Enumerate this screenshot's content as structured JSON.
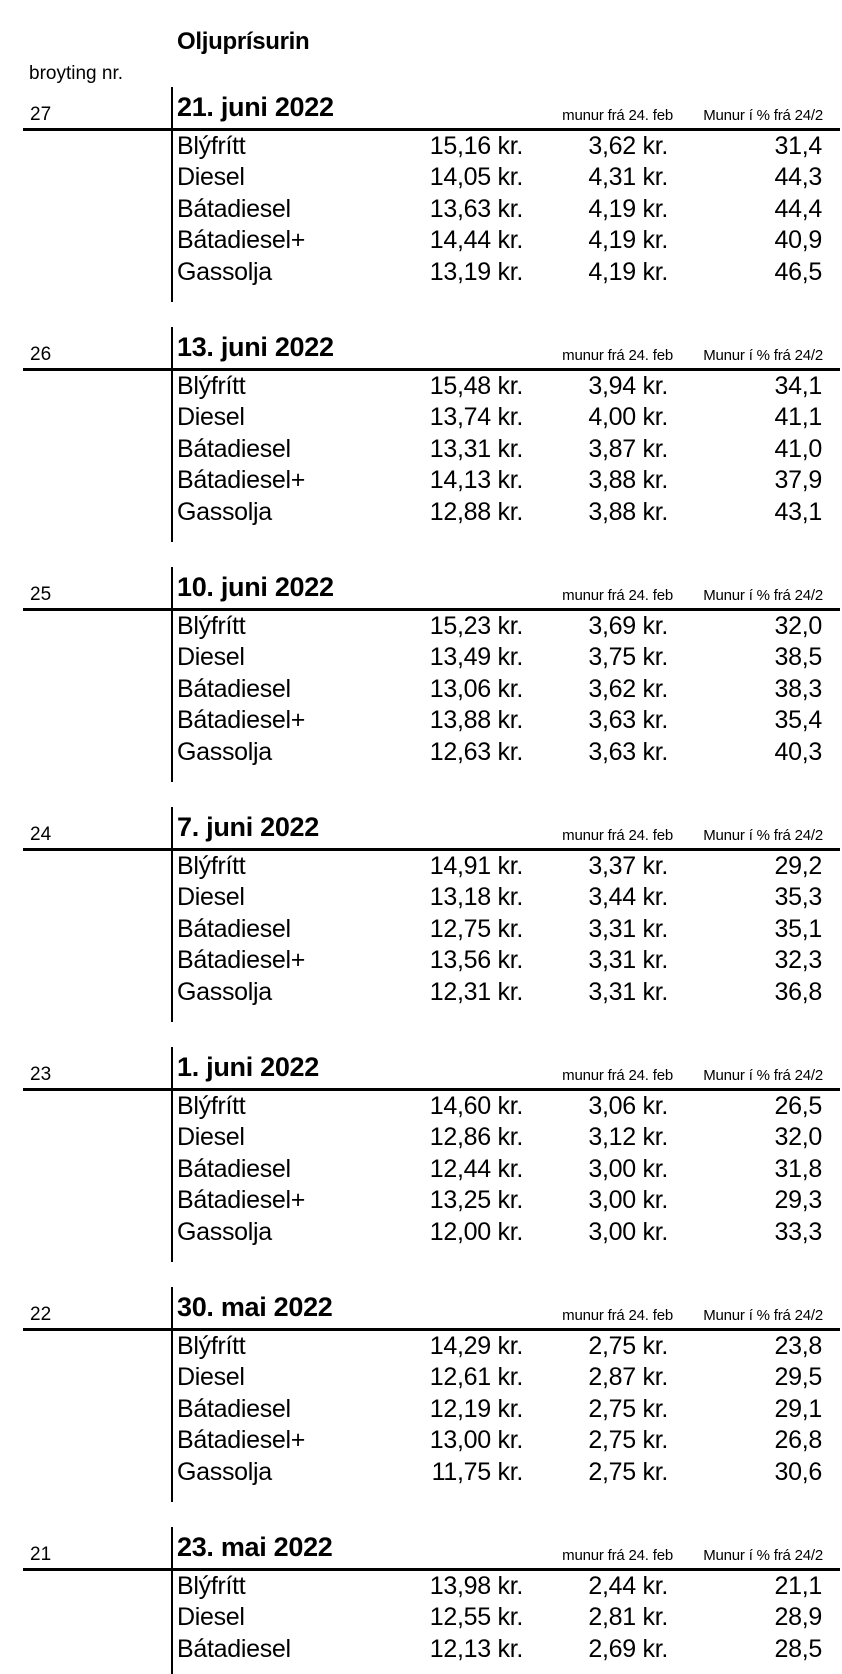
{
  "title": "Oljuprísurin",
  "change_label": "broyting nr.",
  "columns": {
    "diff": "munur frá 24. feb",
    "pct": "Munur í % frá 24/2"
  },
  "colors": {
    "text": "#000000",
    "background": "#ffffff"
  },
  "sections": [
    {
      "number": "27",
      "date": "21. juni 2022",
      "rows": [
        {
          "fuel": "Blýfrítt",
          "price": "15,16 kr.",
          "diff": "3,62 kr.",
          "pct": "31,4"
        },
        {
          "fuel": "Diesel",
          "price": "14,05 kr.",
          "diff": "4,31 kr.",
          "pct": "44,3"
        },
        {
          "fuel": "Bátadiesel",
          "price": "13,63 kr.",
          "diff": "4,19 kr.",
          "pct": "44,4"
        },
        {
          "fuel": "Bátadiesel+",
          "price": "14,44 kr.",
          "diff": "4,19 kr.",
          "pct": "40,9"
        },
        {
          "fuel": "Gassolja",
          "price": "13,19 kr.",
          "diff": "4,19 kr.",
          "pct": "46,5"
        }
      ]
    },
    {
      "number": "26",
      "date": "13. juni 2022",
      "rows": [
        {
          "fuel": "Blýfrítt",
          "price": "15,48 kr.",
          "diff": "3,94 kr.",
          "pct": "34,1"
        },
        {
          "fuel": "Diesel",
          "price": "13,74 kr.",
          "diff": "4,00 kr.",
          "pct": "41,1"
        },
        {
          "fuel": "Bátadiesel",
          "price": "13,31 kr.",
          "diff": "3,87 kr.",
          "pct": "41,0"
        },
        {
          "fuel": "Bátadiesel+",
          "price": "14,13 kr.",
          "diff": "3,88 kr.",
          "pct": "37,9"
        },
        {
          "fuel": "Gassolja",
          "price": "12,88 kr.",
          "diff": "3,88 kr.",
          "pct": "43,1"
        }
      ]
    },
    {
      "number": "25",
      "date": "10. juni 2022",
      "rows": [
        {
          "fuel": "Blýfrítt",
          "price": "15,23 kr.",
          "diff": "3,69 kr.",
          "pct": "32,0"
        },
        {
          "fuel": "Diesel",
          "price": "13,49 kr.",
          "diff": "3,75 kr.",
          "pct": "38,5"
        },
        {
          "fuel": "Bátadiesel",
          "price": "13,06 kr.",
          "diff": "3,62 kr.",
          "pct": "38,3"
        },
        {
          "fuel": "Bátadiesel+",
          "price": "13,88 kr.",
          "diff": "3,63 kr.",
          "pct": "35,4"
        },
        {
          "fuel": "Gassolja",
          "price": "12,63 kr.",
          "diff": "3,63 kr.",
          "pct": "40,3"
        }
      ]
    },
    {
      "number": "24",
      "date": "7. juni 2022",
      "rows": [
        {
          "fuel": "Blýfrítt",
          "price": "14,91 kr.",
          "diff": "3,37 kr.",
          "pct": "29,2"
        },
        {
          "fuel": "Diesel",
          "price": "13,18 kr.",
          "diff": "3,44 kr.",
          "pct": "35,3"
        },
        {
          "fuel": "Bátadiesel",
          "price": "12,75 kr.",
          "diff": "3,31 kr.",
          "pct": "35,1"
        },
        {
          "fuel": "Bátadiesel+",
          "price": "13,56 kr.",
          "diff": "3,31 kr.",
          "pct": "32,3"
        },
        {
          "fuel": "Gassolja",
          "price": "12,31 kr.",
          "diff": "3,31 kr.",
          "pct": "36,8"
        }
      ]
    },
    {
      "number": "23",
      "date": "1. juni 2022",
      "rows": [
        {
          "fuel": "Blýfrítt",
          "price": "14,60 kr.",
          "diff": "3,06 kr.",
          "pct": "26,5"
        },
        {
          "fuel": "Diesel",
          "price": "12,86 kr.",
          "diff": "3,12 kr.",
          "pct": "32,0"
        },
        {
          "fuel": "Bátadiesel",
          "price": "12,44 kr.",
          "diff": "3,00 kr.",
          "pct": "31,8"
        },
        {
          "fuel": "Bátadiesel+",
          "price": "13,25 kr.",
          "diff": "3,00 kr.",
          "pct": "29,3"
        },
        {
          "fuel": "Gassolja",
          "price": "12,00 kr.",
          "diff": "3,00 kr.",
          "pct": "33,3"
        }
      ]
    },
    {
      "number": "22",
      "date": "30. mai 2022",
      "rows": [
        {
          "fuel": "Blýfrítt",
          "price": "14,29 kr.",
          "diff": "2,75 kr.",
          "pct": "23,8"
        },
        {
          "fuel": "Diesel",
          "price": "12,61 kr.",
          "diff": "2,87 kr.",
          "pct": "29,5"
        },
        {
          "fuel": "Bátadiesel",
          "price": "12,19 kr.",
          "diff": "2,75 kr.",
          "pct": "29,1"
        },
        {
          "fuel": "Bátadiesel+",
          "price": "13,00 kr.",
          "diff": "2,75 kr.",
          "pct": "26,8"
        },
        {
          "fuel": "Gassolja",
          "price": "11,75 kr.",
          "diff": "2,75 kr.",
          "pct": "30,6"
        }
      ]
    },
    {
      "number": "21",
      "date": "23. mai 2022",
      "rows": [
        {
          "fuel": "Blýfrítt",
          "price": "13,98 kr.",
          "diff": "2,44 kr.",
          "pct": "21,1"
        },
        {
          "fuel": "Diesel",
          "price": "12,55 kr.",
          "diff": "2,81 kr.",
          "pct": "28,9"
        },
        {
          "fuel": "Bátadiesel",
          "price": "12,13 kr.",
          "diff": "2,69 kr.",
          "pct": "28,5"
        }
      ]
    }
  ]
}
